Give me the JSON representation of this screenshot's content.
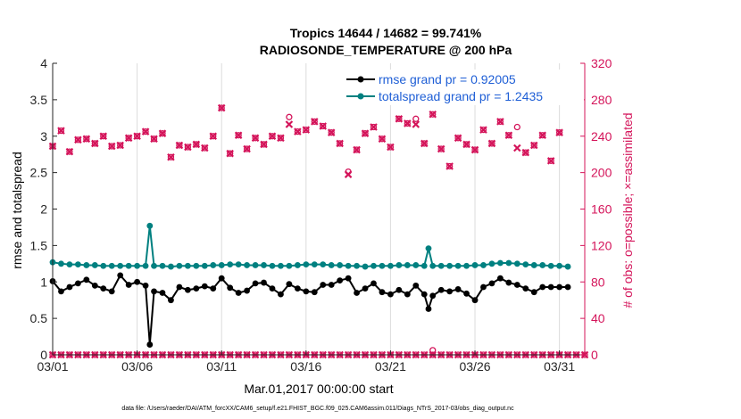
{
  "chart_data": {
    "type": "line",
    "title_line1": "Tropics 14644 / 14682 = 99.741%",
    "title_line2": "RADIOSONDE_TEMPERATURE @ 200 hPa",
    "xlabel": "Mar.01,2017 00:00:00 start",
    "ylabel_left": "rmse and totalspread",
    "ylabel_right": "# of obs: o=possible; ×=assimilated",
    "footer": "data file: /Users/raeder/DAI/ATM_forcXX/CAM6_setup/f.e21.FHIST_BGC.f09_025.CAM6assim.011/Diags_NTrS_2017-03/obs_diag_output.nc",
    "xlim": [
      1,
      32.5
    ],
    "ylim_left": [
      0,
      4
    ],
    "ylim_right": [
      0,
      320
    ],
    "xticks": [
      1,
      6,
      11,
      16,
      21,
      26,
      31
    ],
    "xtick_labels": [
      "03/01",
      "03/06",
      "03/11",
      "03/16",
      "03/21",
      "03/26",
      "03/31"
    ],
    "yticks_left": [
      0,
      0.5,
      1,
      1.5,
      2,
      2.5,
      3,
      3.5,
      4
    ],
    "ytick_labels_left": [
      "0",
      "0.5",
      "1",
      "1.5",
      "2",
      "2.5",
      "3",
      "3.5",
      "4"
    ],
    "yticks_right": [
      0,
      40,
      80,
      120,
      160,
      200,
      240,
      280,
      320
    ],
    "ytick_labels_right": [
      "0",
      "40",
      "80",
      "120",
      "160",
      "200",
      "240",
      "280",
      "320"
    ],
    "colors": {
      "rmse": "#000000",
      "spread": "#008080",
      "obs": "#d4145a",
      "legend_text": "#1f5fd6"
    },
    "legend": [
      {
        "label": "rmse grand pr = 0.92005",
        "series": "rmse"
      },
      {
        "label": "totalspread grand pr = 1.2435",
        "series": "spread"
      }
    ],
    "series": [
      {
        "name": "rmse",
        "axis": "left",
        "x": [
          1,
          1.5,
          2,
          2.5,
          3,
          3.5,
          4,
          4.5,
          5,
          5.5,
          6,
          6.5,
          6.75,
          7,
          7.5,
          8,
          8.5,
          9,
          9.5,
          10,
          10.5,
          11,
          11.5,
          12,
          12.5,
          13,
          13.5,
          14,
          14.5,
          15,
          15.5,
          16,
          16.5,
          17,
          17.5,
          18,
          18.5,
          19,
          19.5,
          20,
          20.5,
          21,
          21.5,
          22,
          22.5,
          23,
          23.25,
          23.5,
          24,
          24.5,
          25,
          25.5,
          26,
          26.5,
          27,
          27.5,
          28,
          28.5,
          29,
          29.5,
          30,
          30.5,
          31,
          31.5
        ],
        "values": [
          1.01,
          0.87,
          0.93,
          0.98,
          1.03,
          0.95,
          0.91,
          0.87,
          1.09,
          0.96,
          1.0,
          0.95,
          0.14,
          0.87,
          0.85,
          0.75,
          0.93,
          0.89,
          0.91,
          0.94,
          0.91,
          1.05,
          0.92,
          0.85,
          0.88,
          0.98,
          0.99,
          0.91,
          0.83,
          0.97,
          0.91,
          0.87,
          0.86,
          0.96,
          0.96,
          1.02,
          1.05,
          0.85,
          0.91,
          0.98,
          0.86,
          0.83,
          0.89,
          0.83,
          0.95,
          0.83,
          0.63,
          0.81,
          0.89,
          0.87,
          0.9,
          0.84,
          0.75,
          0.93,
          0.98,
          1.05,
          0.99,
          0.96,
          0.91,
          0.86,
          0.93,
          0.93,
          0.93,
          0.93
        ]
      },
      {
        "name": "totalspread",
        "axis": "left",
        "x": [
          1,
          1.5,
          2,
          2.5,
          3,
          3.5,
          4,
          4.5,
          5,
          5.5,
          6,
          6.5,
          6.75,
          7,
          7.5,
          8,
          8.5,
          9,
          9.5,
          10,
          10.5,
          11,
          11.5,
          12,
          12.5,
          13,
          13.5,
          14,
          14.5,
          15,
          15.5,
          16,
          16.5,
          17,
          17.5,
          18,
          18.5,
          19,
          19.5,
          20,
          20.5,
          21,
          21.5,
          22,
          22.5,
          23,
          23.25,
          23.5,
          24,
          24.5,
          25,
          25.5,
          26,
          26.5,
          27,
          27.5,
          28,
          28.5,
          29,
          29.5,
          30,
          30.5,
          31,
          31.5
        ],
        "values": [
          1.27,
          1.25,
          1.24,
          1.24,
          1.23,
          1.23,
          1.22,
          1.22,
          1.22,
          1.22,
          1.22,
          1.22,
          1.77,
          1.22,
          1.22,
          1.21,
          1.22,
          1.22,
          1.22,
          1.22,
          1.23,
          1.23,
          1.24,
          1.24,
          1.23,
          1.23,
          1.23,
          1.22,
          1.22,
          1.22,
          1.23,
          1.24,
          1.24,
          1.24,
          1.23,
          1.23,
          1.22,
          1.22,
          1.21,
          1.22,
          1.22,
          1.22,
          1.23,
          1.23,
          1.23,
          1.22,
          1.46,
          1.22,
          1.22,
          1.22,
          1.22,
          1.22,
          1.23,
          1.23,
          1.25,
          1.26,
          1.26,
          1.25,
          1.24,
          1.23,
          1.23,
          1.22,
          1.22,
          1.21
        ]
      }
    ],
    "obs_possible": {
      "axis": "right",
      "x": [
        1,
        1.5,
        2,
        2.5,
        3,
        3.5,
        4,
        4.5,
        5,
        5.5,
        6,
        6.5,
        7,
        7.5,
        8,
        8.5,
        9,
        9.5,
        10,
        10.5,
        11,
        11.5,
        12,
        12.5,
        13,
        13.5,
        14,
        14.5,
        15,
        15.5,
        16,
        16.5,
        17,
        17.5,
        18,
        18.5,
        19,
        19.5,
        20,
        20.5,
        21,
        21.5,
        22,
        22.5,
        23,
        23.5,
        24,
        24.5,
        25,
        25.5,
        26,
        26.5,
        27,
        27.5,
        28,
        28.5,
        29,
        29.5,
        30,
        30.5,
        31
      ],
      "values": [
        229,
        246,
        223,
        236,
        237,
        232,
        240,
        229,
        230,
        238,
        240,
        245,
        237,
        243,
        217,
        230,
        228,
        231,
        227,
        240,
        271,
        221,
        241,
        226,
        238,
        231,
        240,
        238,
        261,
        245,
        247,
        256,
        251,
        244,
        232,
        201,
        225,
        243,
        250,
        237,
        228,
        259,
        254,
        259,
        232,
        264,
        226,
        207,
        238,
        231,
        225,
        247,
        232,
        256,
        241,
        250,
        222,
        230,
        241,
        213,
        244
      ],
      "x_extra": [
        23.5
      ],
      "values_extra": [
        5
      ]
    },
    "obs_assimilated": {
      "axis": "right",
      "x": [
        1,
        1.5,
        2,
        2.5,
        3,
        3.5,
        4,
        4.5,
        5,
        5.5,
        6,
        6.5,
        7,
        7.5,
        8,
        8.5,
        9,
        9.5,
        10,
        10.5,
        11,
        11.5,
        12,
        12.5,
        13,
        13.5,
        14,
        14.5,
        15,
        15.5,
        16,
        16.5,
        17,
        17.5,
        18,
        18.5,
        19,
        19.5,
        20,
        20.5,
        21,
        21.5,
        22,
        22.5,
        23,
        23.5,
        24,
        24.5,
        25,
        25.5,
        26,
        26.5,
        27,
        27.5,
        28,
        28.5,
        29,
        29.5,
        30,
        30.5,
        31
      ],
      "values": [
        229,
        246,
        223,
        236,
        237,
        232,
        240,
        229,
        230,
        238,
        240,
        245,
        237,
        243,
        217,
        230,
        228,
        231,
        227,
        240,
        271,
        221,
        241,
        226,
        238,
        231,
        240,
        238,
        253,
        245,
        247,
        256,
        251,
        244,
        232,
        198,
        225,
        243,
        250,
        237,
        228,
        259,
        254,
        253,
        232,
        264,
        226,
        207,
        238,
        231,
        225,
        247,
        232,
        256,
        241,
        227,
        222,
        230,
        241,
        213,
        244
      ],
      "zeros_x_start": 1,
      "zeros_x_end": 32.5,
      "zeros_x_step": 0.5
    }
  }
}
